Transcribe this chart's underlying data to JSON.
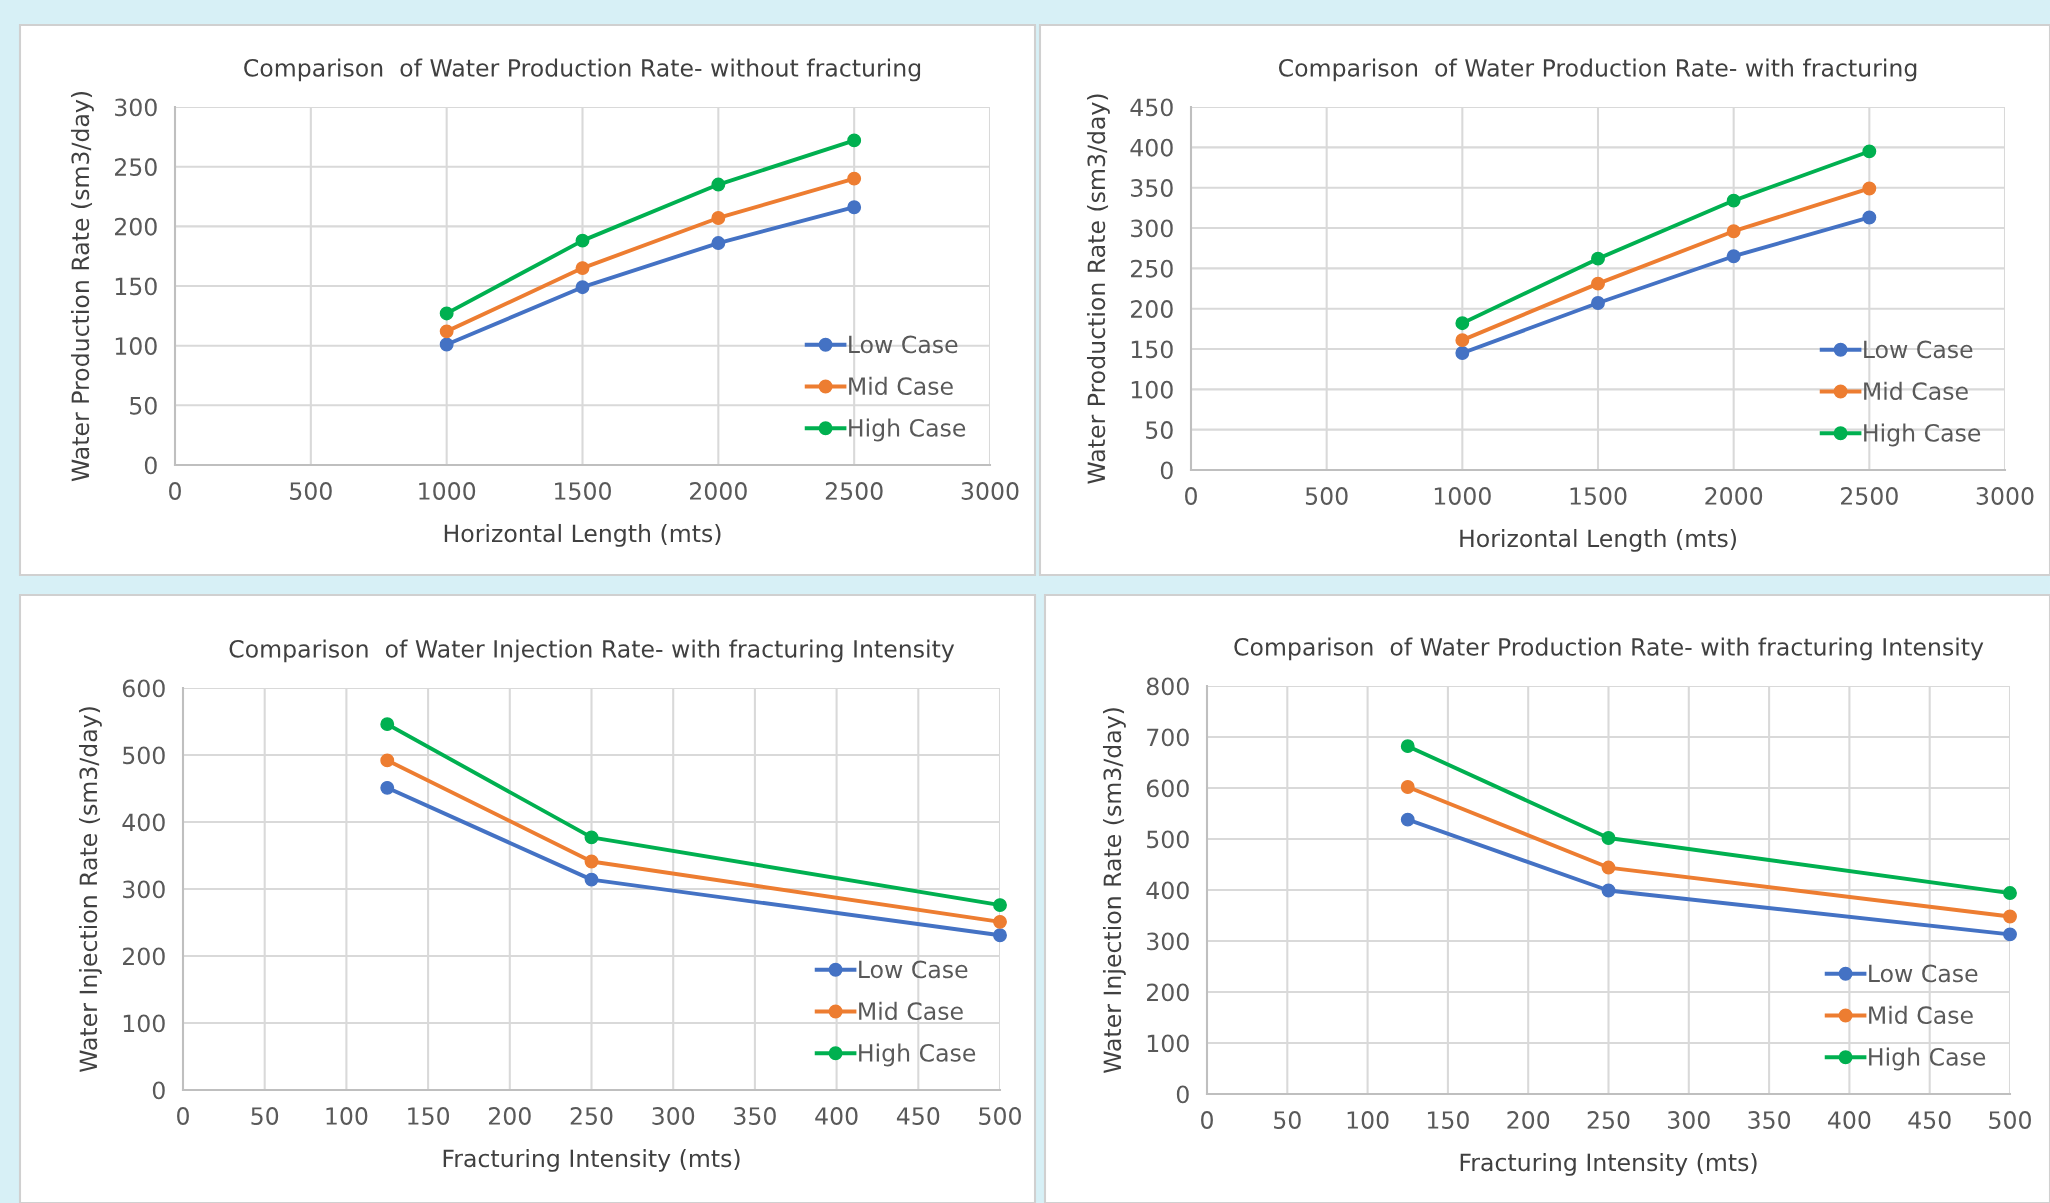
{
  "chart_data": [
    {
      "type": "line",
      "title": "Comparison  of Water Production Rate- without fracturing",
      "xlabel": "Horizontal Length (mts)",
      "ylabel": "Water Production Rate (sm3/day)",
      "x": [
        1000,
        1500,
        2000,
        2500
      ],
      "xlim": [
        0,
        3000
      ],
      "xticks": [
        0,
        500,
        1000,
        1500,
        2000,
        2500,
        3000
      ],
      "ylim": [
        0,
        300
      ],
      "yticks": [
        0,
        50,
        100,
        150,
        200,
        250,
        300
      ],
      "grid": true,
      "legend": "bottom right",
      "marker": "circle",
      "line_style": "solid",
      "series": [
        {
          "name": "Low Case",
          "color": "#4472c4",
          "values": [
            101,
            149,
            186,
            216
          ]
        },
        {
          "name": "Mid Case",
          "color": "#ed7d31",
          "values": [
            112,
            165,
            207,
            240
          ]
        },
        {
          "name": "High Case",
          "color": "#00b050",
          "values": [
            127,
            188,
            235,
            272
          ]
        }
      ]
    },
    {
      "type": "line",
      "title": "Comparison  of Water Production Rate- with fracturing",
      "xlabel": "Horizontal Length (mts)",
      "ylabel": "Water Production Rate (sm3/day)",
      "x": [
        1000,
        1500,
        2000,
        2500
      ],
      "xlim": [
        0,
        3000
      ],
      "xticks": [
        0,
        500,
        1000,
        1500,
        2000,
        2500,
        3000
      ],
      "ylim": [
        0,
        450
      ],
      "yticks": [
        0,
        50,
        100,
        150,
        200,
        250,
        300,
        350,
        400,
        450
      ],
      "grid": true,
      "legend": "bottom right",
      "marker": "circle",
      "line_style": "solid",
      "series": [
        {
          "name": "Low Case",
          "color": "#4472c4",
          "values": [
            145,
            207,
            265,
            313
          ]
        },
        {
          "name": "Mid Case",
          "color": "#ed7d31",
          "values": [
            161,
            231,
            296,
            349
          ]
        },
        {
          "name": "High Case",
          "color": "#00b050",
          "values": [
            182,
            262,
            334,
            395
          ]
        }
      ]
    },
    {
      "type": "line",
      "title": "Comparison  of Water Injection Rate- with fracturing Intensity",
      "xlabel": "Fracturing Intensity (mts)",
      "ylabel": "Water Injection Rate (sm3/day)",
      "x": [
        125,
        250,
        500
      ],
      "xlim": [
        0,
        500
      ],
      "xticks": [
        0,
        50,
        100,
        150,
        200,
        250,
        300,
        350,
        400,
        450,
        500
      ],
      "ylim": [
        0,
        600
      ],
      "yticks": [
        0,
        100,
        200,
        300,
        400,
        500,
        600
      ],
      "grid": true,
      "legend": "bottom right",
      "marker": "circle",
      "line_style": "solid",
      "series": [
        {
          "name": "Low Case",
          "color": "#4472c4",
          "values": [
            451,
            314,
            231
          ]
        },
        {
          "name": "Mid Case",
          "color": "#ed7d31",
          "values": [
            492,
            341,
            251
          ]
        },
        {
          "name": "High Case",
          "color": "#00b050",
          "values": [
            546,
            377,
            276
          ]
        }
      ]
    },
    {
      "type": "line",
      "title": "Comparison  of Water Production Rate- with fracturing Intensity",
      "xlabel": "Fracturing Intensity (mts)",
      "ylabel": "Water Injection Rate (sm3/day)",
      "x": [
        125,
        250,
        500
      ],
      "xlim": [
        0,
        500
      ],
      "xticks": [
        0,
        50,
        100,
        150,
        200,
        250,
        300,
        350,
        400,
        450,
        500
      ],
      "ylim": [
        0,
        800
      ],
      "yticks": [
        0,
        100,
        200,
        300,
        400,
        500,
        600,
        700,
        800
      ],
      "grid": true,
      "legend": "bottom right",
      "marker": "circle",
      "line_style": "solid",
      "series": [
        {
          "name": "Low Case",
          "color": "#4472c4",
          "values": [
            538,
            399,
            313
          ]
        },
        {
          "name": "Mid Case",
          "color": "#ed7d31",
          "values": [
            602,
            444,
            348
          ]
        },
        {
          "name": "High Case",
          "color": "#00b050",
          "values": [
            682,
            502,
            394
          ]
        }
      ]
    }
  ]
}
